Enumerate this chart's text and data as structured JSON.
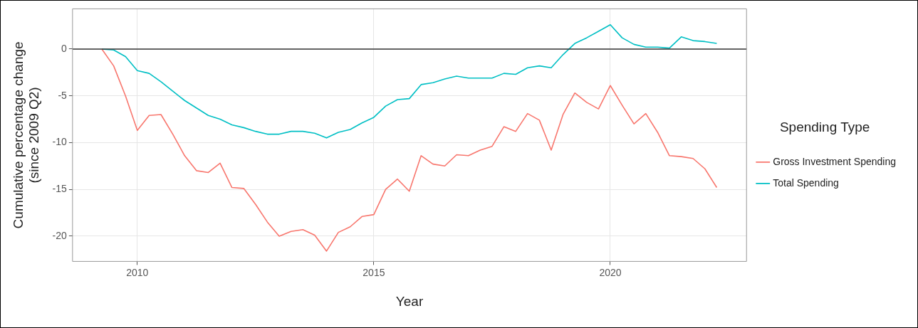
{
  "chart_data": {
    "type": "line",
    "xlabel": "Year",
    "ylabel": "Cumulative percentage change\n(since 2009 Q2)",
    "legend_title": "Spending Type",
    "x": [
      2009.25,
      2009.5,
      2009.75,
      2010,
      2010.25,
      2010.5,
      2010.75,
      2011,
      2011.25,
      2011.5,
      2011.75,
      2012,
      2012.25,
      2012.5,
      2012.75,
      2013,
      2013.25,
      2013.5,
      2013.75,
      2014,
      2014.25,
      2014.5,
      2014.75,
      2015,
      2015.25,
      2015.5,
      2015.75,
      2016,
      2016.25,
      2016.5,
      2016.75,
      2017,
      2017.25,
      2017.5,
      2017.75,
      2018,
      2018.25,
      2018.5,
      2018.75,
      2019,
      2019.25,
      2019.5,
      2019.75,
      2020,
      2020.25,
      2020.5,
      2020.75,
      2021,
      2021.25,
      2021.5,
      2021.75,
      2022,
      2022.25
    ],
    "series": [
      {
        "name": "Gross Investment Spending",
        "color": "#f8766d",
        "values": [
          0,
          -1.8,
          -5,
          -8.7,
          -7.1,
          -7.0,
          -9.1,
          -11.4,
          -13.0,
          -13.2,
          -12.2,
          -14.8,
          -14.9,
          -16.6,
          -18.5,
          -20.0,
          -19.5,
          -19.3,
          -19.9,
          -21.6,
          -19.6,
          -19.0,
          -17.9,
          -17.7,
          -15.0,
          -13.9,
          -15.2,
          -11.4,
          -12.3,
          -12.5,
          -11.3,
          -11.4,
          -10.8,
          -10.4,
          -8.3,
          -8.8,
          -6.9,
          -7.6,
          -10.8,
          -7.0,
          -4.7,
          -5.7,
          -6.4,
          -3.9,
          -6.0,
          -8.0,
          -6.9,
          -8.9,
          -11.4,
          -11.5,
          -11.7,
          -12.8,
          -14.8
        ]
      },
      {
        "name": "Total Spending",
        "color": "#00bfc4",
        "values": [
          0,
          -0.1,
          -0.8,
          -2.3,
          -2.6,
          -3.5,
          -4.5,
          -5.5,
          -6.3,
          -7.1,
          -7.5,
          -8.1,
          -8.4,
          -8.8,
          -9.1,
          -9.1,
          -8.8,
          -8.8,
          -9.0,
          -9.5,
          -8.9,
          -8.6,
          -7.9,
          -7.3,
          -6.1,
          -5.4,
          -5.3,
          -3.8,
          -3.6,
          -3.2,
          -2.9,
          -3.1,
          -3.1,
          -3.1,
          -2.6,
          -2.7,
          -2.0,
          -1.8,
          -2.0,
          -0.6,
          0.6,
          1.2,
          1.9,
          2.6,
          1.2,
          0.5,
          0.2,
          0.2,
          0.1,
          1.3,
          0.9,
          0.8,
          0.6
        ]
      }
    ],
    "xlim": [
      2008.63,
      2022.88
    ],
    "xticks": [
      2010,
      2015,
      2020
    ],
    "ylim": [
      -22.7,
      4.3
    ],
    "yticks": [
      -20,
      -15,
      -10,
      -5,
      0
    ],
    "ref_lines": [
      {
        "axis": "y",
        "value": 0,
        "color": "#333333"
      }
    ],
    "grid": true,
    "legend": "right",
    "marker": "none",
    "line_style": "solid"
  }
}
